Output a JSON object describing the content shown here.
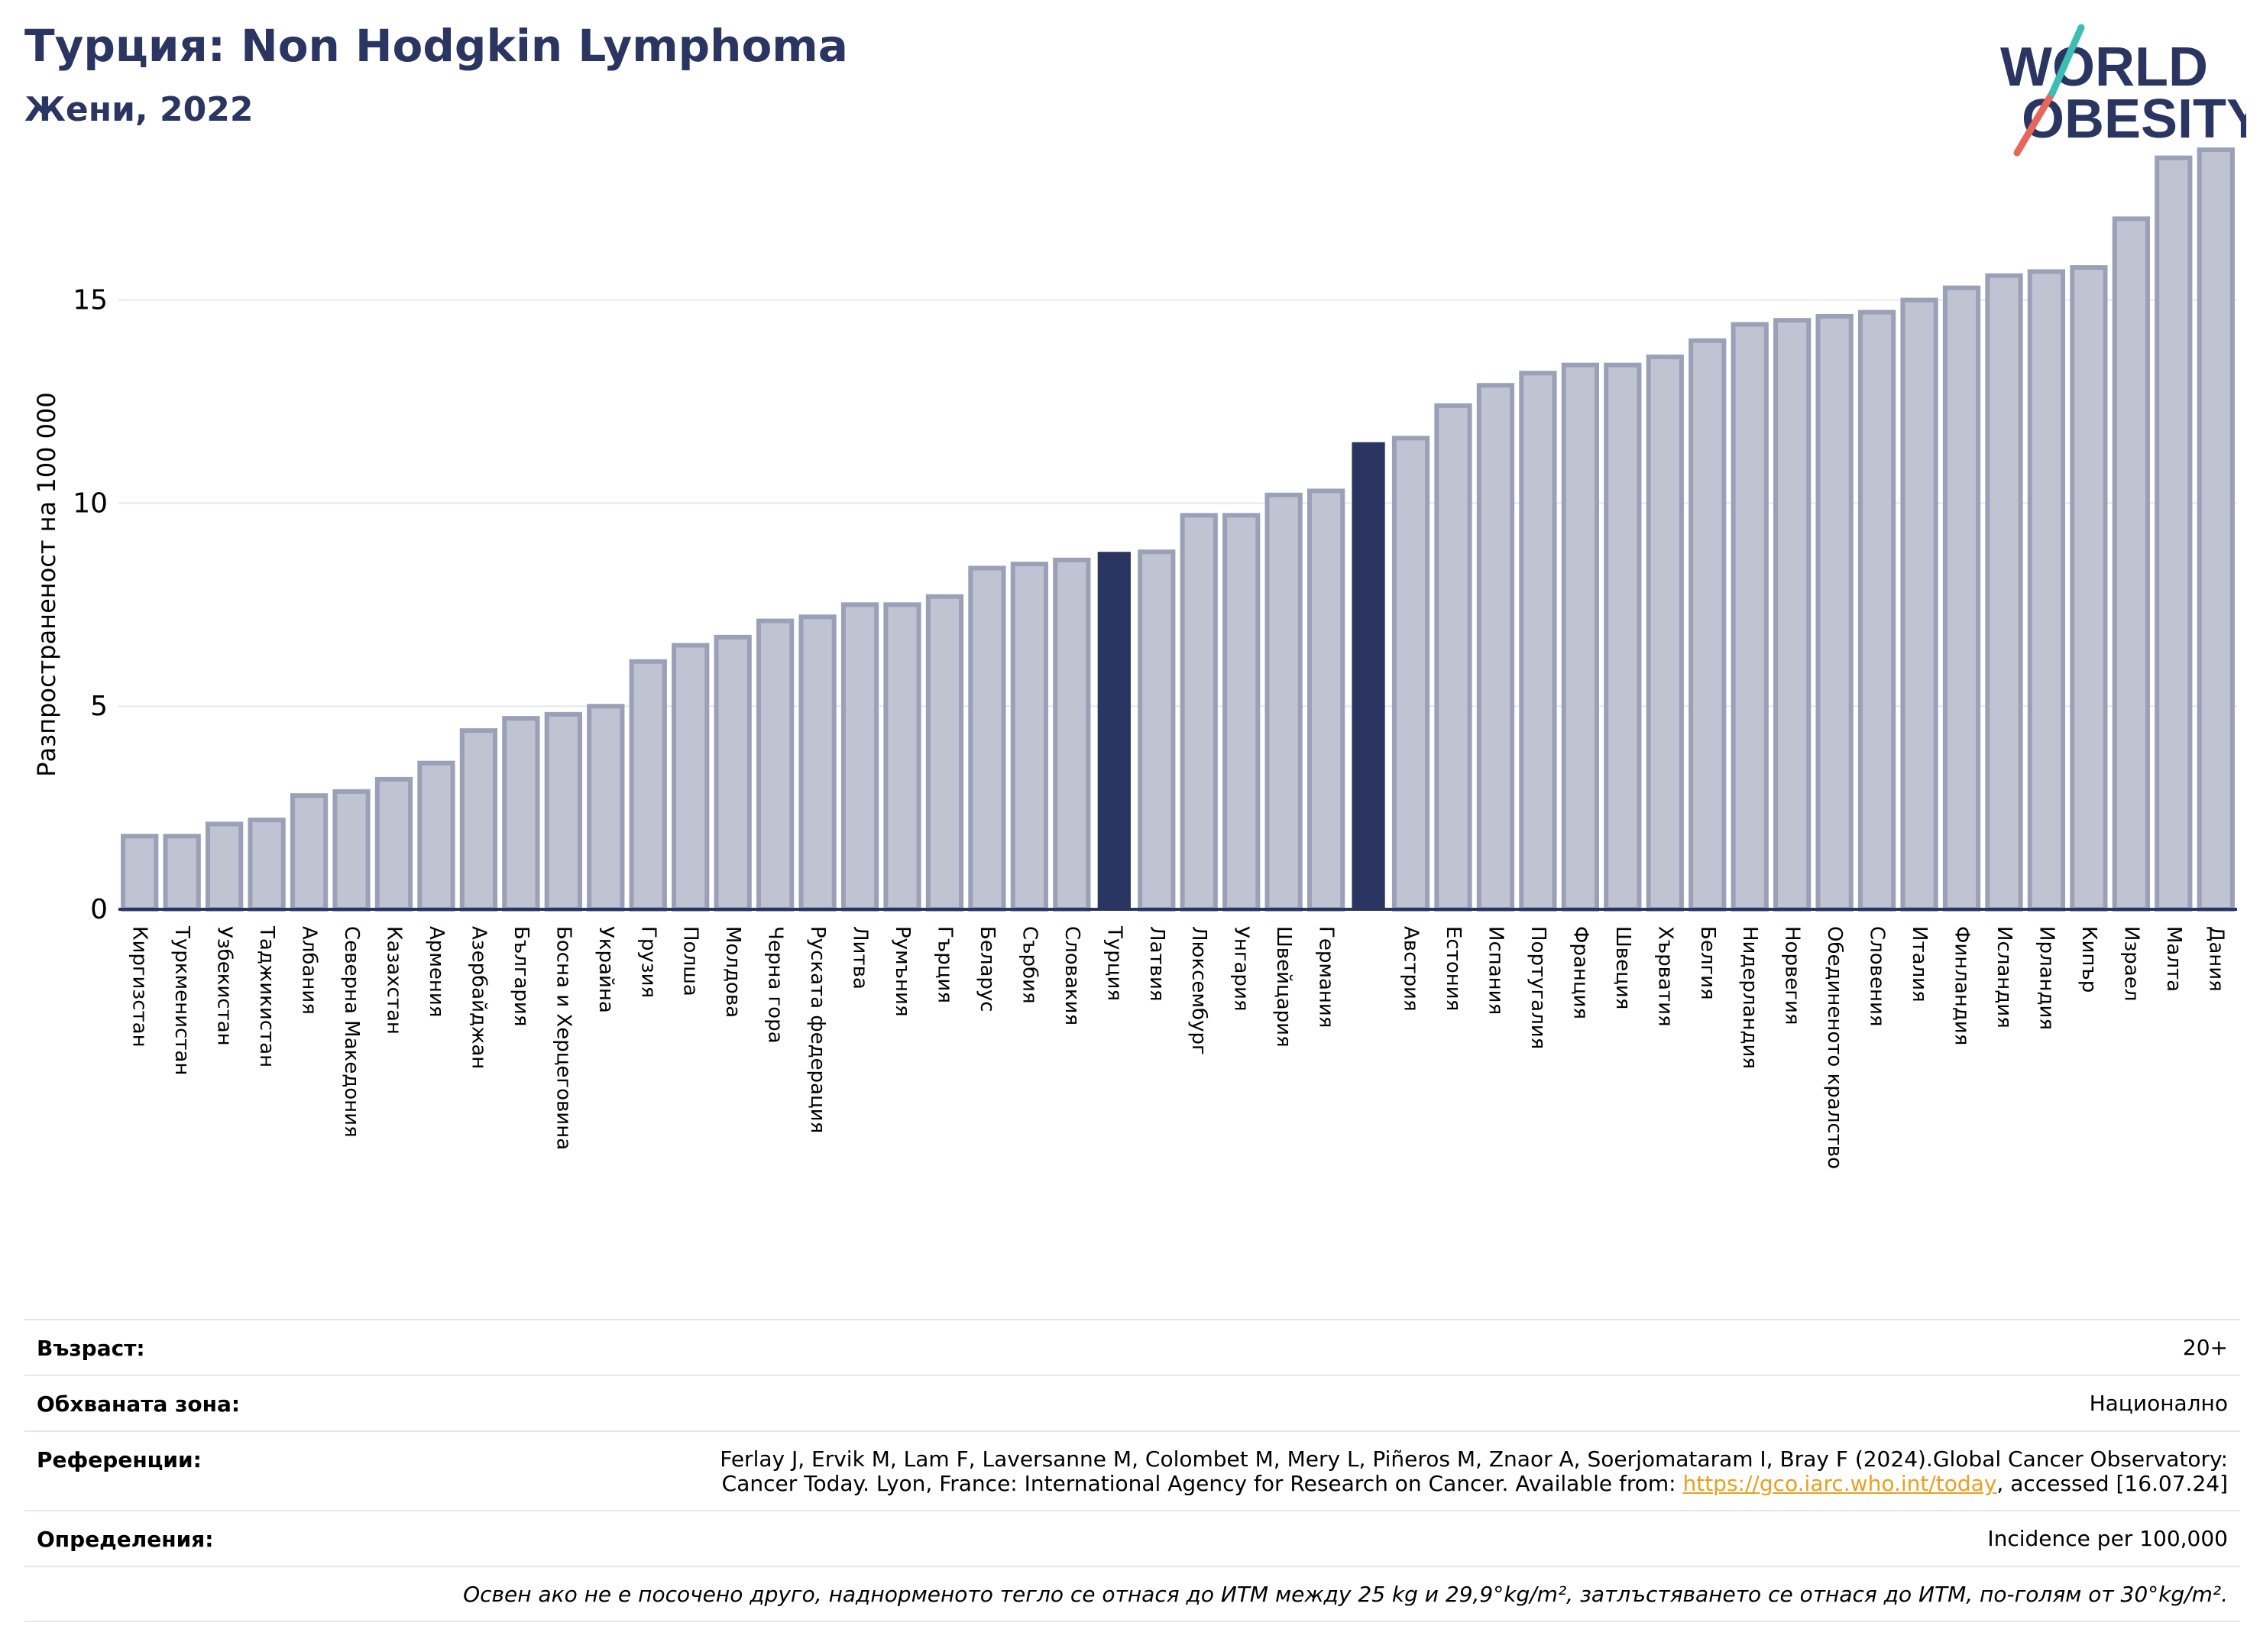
{
  "header": {
    "title": "Турция: Non Hodgkin Lymphoma",
    "subtitle": "Жени, 2022"
  },
  "logo": {
    "line1": "WORLD",
    "line2": "OBESITY",
    "colors": {
      "navy": "#2a3561",
      "teal": "#3bbfb5",
      "coral": "#e8675a"
    }
  },
  "colors": {
    "bar_fill": "#c0c3d1",
    "bar_stroke": "#9aa0b8",
    "highlight": "#2a3561",
    "axis": "#2a3561",
    "grid": "#e6e8ef"
  },
  "chart_data": {
    "type": "bar",
    "ylabel": "Разпространеност  на 100 000",
    "ylim": [
      0,
      19
    ],
    "yticks": [
      0,
      5,
      10,
      15
    ],
    "grid": true,
    "categories": [
      "Киргизстан",
      "Туркменистан",
      "Узбекистан",
      "Таджикистан",
      "Албания",
      "Северна Македония",
      "Казахстан",
      "Армения",
      "Азербайджан",
      "България",
      "Босна и Херцеговина",
      "Украйна",
      "Грузия",
      "Полша",
      "Молдова",
      "Черна гора",
      "Руската федерация",
      "Литва",
      "Румъния",
      "Гърция",
      "Беларус",
      "Сърбия",
      "Словакия",
      "Турция",
      "Латвия",
      "Люксембург",
      "Унгария",
      "Швейцария",
      "Германия",
      "",
      "Австрия",
      "Естония",
      "Испания",
      "Португалия",
      "Франция",
      "Швеция",
      "Хърватия",
      "Белгия",
      "Нидерландия",
      "Норвегия",
      "Обединеното кралство",
      "Словения",
      "Италия",
      "Финландия",
      "Исландия",
      "Ирландия",
      "Кипър",
      "Израел",
      "Малта",
      "Дания"
    ],
    "values": [
      1.8,
      1.8,
      2.1,
      2.2,
      2.8,
      2.9,
      3.2,
      3.6,
      4.4,
      4.7,
      4.8,
      5.0,
      6.1,
      6.5,
      6.7,
      7.1,
      7.2,
      7.5,
      7.5,
      7.7,
      8.4,
      8.5,
      8.6,
      8.8,
      8.8,
      9.7,
      9.7,
      10.2,
      10.3,
      11.5,
      11.6,
      12.4,
      12.9,
      13.2,
      13.4,
      13.4,
      13.6,
      14.0,
      14.4,
      14.5,
      14.6,
      14.7,
      15.0,
      15.3,
      15.6,
      15.7,
      15.8,
      17.0,
      18.5,
      18.7
    ],
    "highlighted": [
      23,
      29
    ]
  },
  "info": {
    "age_label": "Възраст:",
    "age_value": "20+",
    "coverage_label": "Обхваната зона:",
    "coverage_value": "Национално",
    "references_label": "Референции:",
    "references_line1": "Ferlay J, Ervik M, Lam F, Laversanne M, Colombet M, Mery L, Piñeros M, Znaor A, Soerjomataram I, Bray F (2024).Global Cancer Observatory:",
    "references_line2_pre": "Cancer Today. Lyon, France: International Agency for Research on Cancer. Available from: ",
    "references_link": "https://gco.iarc.who.int/today",
    "references_line2_post": ", accessed [16.07.24]",
    "definitions_label": "Определения:",
    "definitions_value": "Incidence per 100,000",
    "note": "Освен ако не е посочено друго, наднорменото тегло се отнася до ИТМ между 25 kg и 29,9°kg/m², затлъстяването се отнася до ИТМ, по-голям от 30°kg/m²."
  }
}
